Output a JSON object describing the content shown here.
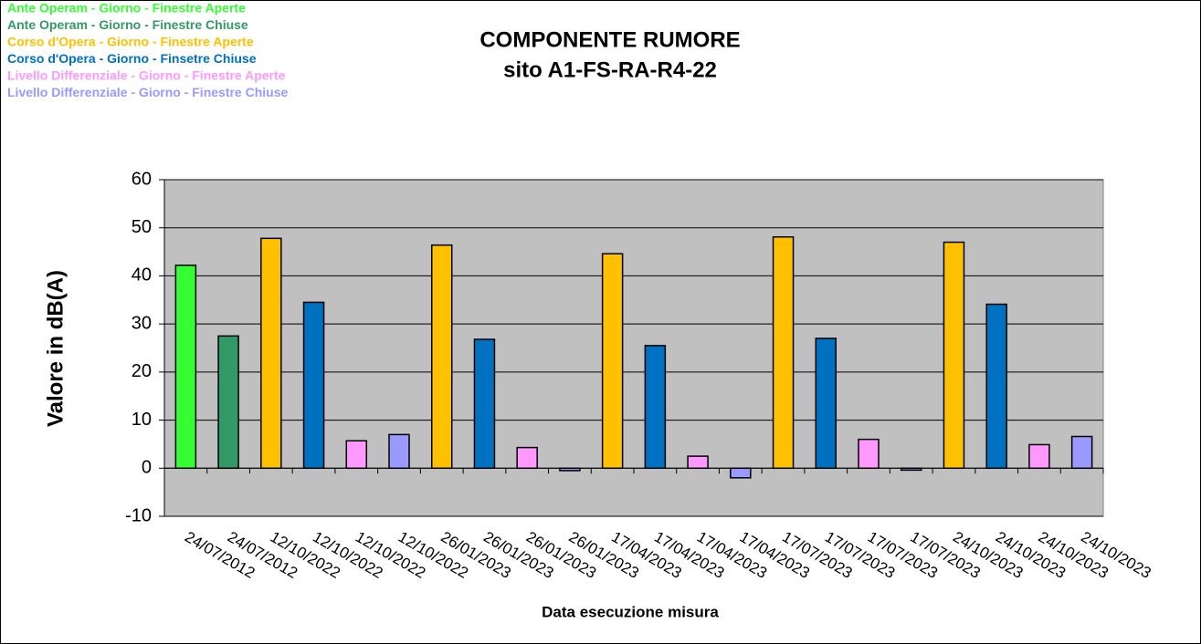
{
  "chart_data": {
    "type": "bar",
    "title": [
      "COMPONENTE RUMORE",
      "sito A1-FS-RA-R4-22"
    ],
    "x_label": "Data esecuzione misura",
    "y_label": "Valore in dB(A)",
    "categories": [
      "24/07/2012",
      "24/07/2012",
      "12/10/2022",
      "12/10/2022",
      "12/10/2022",
      "12/10/2022",
      "26/01/2023",
      "26/01/2023",
      "26/01/2023",
      "26/01/2023",
      "17/04/2023",
      "17/04/2023",
      "17/04/2023",
      "17/04/2023",
      "17/07/2023",
      "17/07/2023",
      "17/07/2023",
      "17/07/2023",
      "24/10/2023",
      "24/10/2023",
      "24/10/2023",
      "24/10/2023"
    ],
    "series": [
      {
        "name": "Ante Operam - Giorno - Finestre Aperte",
        "color": "#33ff33",
        "values": [
          42.2,
          null,
          null,
          null,
          null,
          null,
          null,
          null,
          null,
          null,
          null,
          null,
          null,
          null,
          null,
          null,
          null,
          null,
          null,
          null,
          null,
          null
        ]
      },
      {
        "name": "Ante Operam - Giorno - Finestre Chiuse",
        "color": "#339966",
        "values": [
          null,
          27.5,
          null,
          null,
          null,
          null,
          null,
          null,
          null,
          null,
          null,
          null,
          null,
          null,
          null,
          null,
          null,
          null,
          null,
          null,
          null,
          null
        ]
      },
      {
        "name": "Corso d'Opera  - Giorno - Finestre Aperte",
        "color": "#ffc000",
        "values": [
          null,
          null,
          47.8,
          null,
          null,
          null,
          46.4,
          null,
          null,
          null,
          44.6,
          null,
          null,
          null,
          48.1,
          null,
          null,
          null,
          47.0,
          null,
          null,
          null
        ]
      },
      {
        "name": "Corso d'Opera - Giorno - Finsetre Chiuse",
        "color": "#0070c0",
        "values": [
          null,
          null,
          null,
          34.5,
          null,
          null,
          null,
          26.8,
          null,
          null,
          null,
          25.5,
          null,
          null,
          null,
          27.0,
          null,
          null,
          null,
          34.1,
          null,
          null
        ]
      },
      {
        "name": "Livello Differenziale - Giorno - Finestre Aperte",
        "color": "#ff99ff",
        "values": [
          null,
          null,
          null,
          null,
          5.7,
          null,
          null,
          null,
          4.3,
          null,
          null,
          null,
          2.5,
          null,
          null,
          null,
          6.0,
          null,
          null,
          null,
          4.9,
          null
        ]
      },
      {
        "name": "Livello Differenziale - Giorno - Finestre Chiuse",
        "color": "#9999ff",
        "values": [
          null,
          null,
          null,
          null,
          null,
          7.0,
          null,
          null,
          null,
          -0.5,
          null,
          null,
          null,
          -2.0,
          null,
          null,
          null,
          -0.4,
          null,
          null,
          null,
          6.6
        ]
      }
    ],
    "ylim": [
      -10,
      60
    ],
    "yticks": [
      -10,
      0,
      10,
      20,
      30,
      40,
      50,
      60
    ],
    "grid": true,
    "legend": "top-left"
  }
}
